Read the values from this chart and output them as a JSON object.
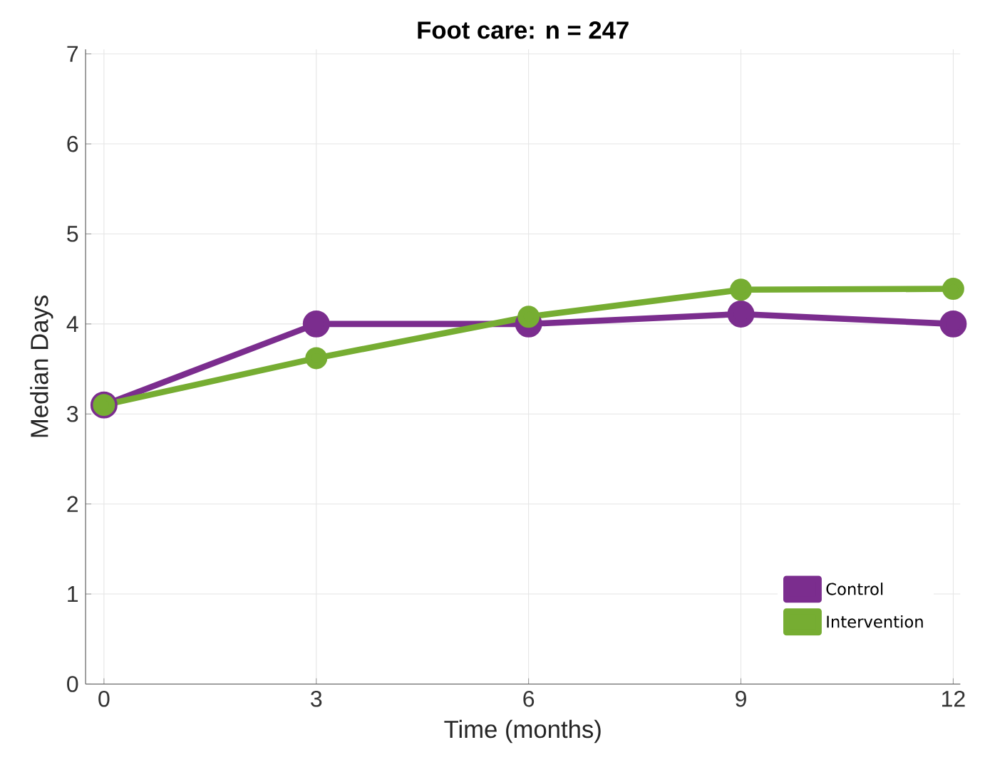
{
  "chart_data": {
    "type": "line",
    "title": "Foot care: n = 247",
    "xlabel": "Time (months)",
    "ylabel": "Median Days",
    "x": [
      0,
      3,
      6,
      9,
      12
    ],
    "series": [
      {
        "name": "Control",
        "color": "#7b2d8e",
        "values": [
          3.1,
          4.0,
          4.0,
          4.11,
          4.0
        ]
      },
      {
        "name": "Intervention",
        "color": "#76ad32",
        "values": [
          3.1,
          3.62,
          4.08,
          4.38,
          4.39
        ]
      }
    ],
    "xlim": [
      -0.26,
      12.1
    ],
    "ylim": [
      0,
      7.05
    ],
    "xticks": [
      0,
      3,
      6,
      9,
      12
    ],
    "yticks": [
      0,
      1,
      2,
      3,
      4,
      5,
      6,
      7
    ],
    "grid": true,
    "legend": "bottom right",
    "marker": "circle",
    "line_style": "solid"
  }
}
